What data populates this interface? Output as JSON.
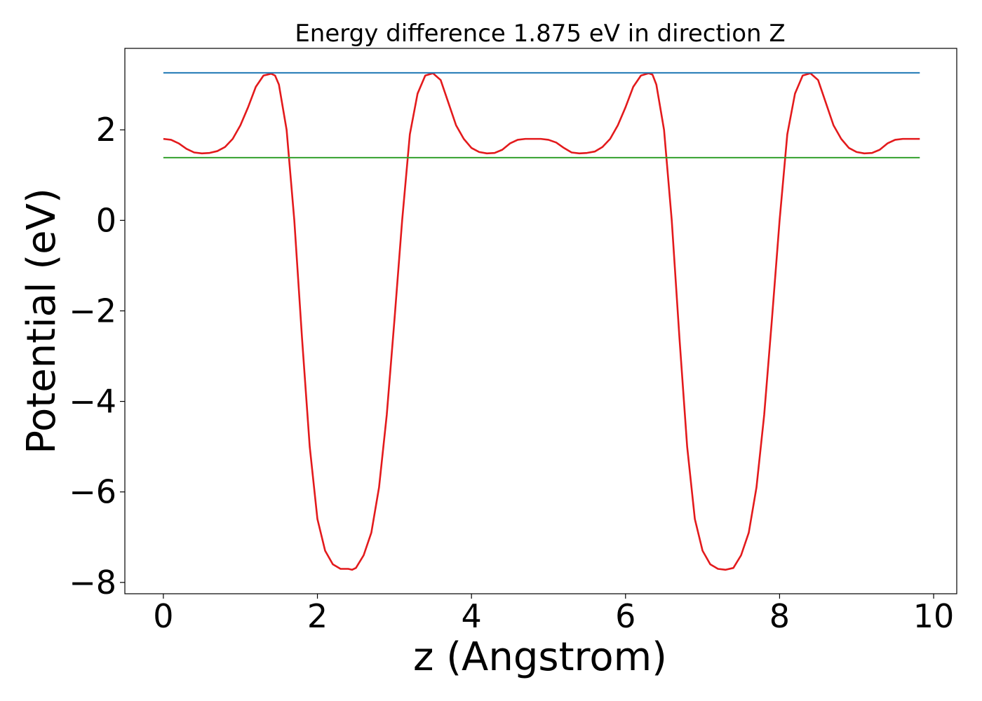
{
  "chart_data": {
    "type": "line",
    "title": "Energy difference 1.875 eV in direction Z",
    "xlabel": "z (Angstrom)",
    "ylabel": "Potential (eV)",
    "xlim": [
      -0.5,
      10.3
    ],
    "ylim": [
      -8.25,
      3.8
    ],
    "grid": false,
    "x_ticks": [
      0,
      2,
      4,
      6,
      8,
      10
    ],
    "x_tick_labels": [
      "0",
      "2",
      "4",
      "6",
      "8",
      "10"
    ],
    "y_ticks": [
      -8,
      -6,
      -4,
      -2,
      0,
      2
    ],
    "y_tick_labels": [
      "−8",
      "−6",
      "−4",
      "−2",
      "0",
      "2"
    ],
    "series": [
      {
        "color": "#e31a1c",
        "x": [
          0.0,
          0.1,
          0.2,
          0.3,
          0.4,
          0.5,
          0.6,
          0.7,
          0.8,
          0.9,
          1.0,
          1.1,
          1.2,
          1.3,
          1.4,
          1.45,
          1.5,
          1.6,
          1.7,
          1.8,
          1.9,
          2.0,
          2.1,
          2.2,
          2.3,
          2.4,
          2.45,
          2.5,
          2.6,
          2.7,
          2.8,
          2.9,
          3.0,
          3.1,
          3.2,
          3.3,
          3.4,
          3.5,
          3.6,
          3.7,
          3.8,
          3.9,
          4.0,
          4.1,
          4.2,
          4.3,
          4.4,
          4.5,
          4.6,
          4.7,
          4.8,
          4.9,
          5.0,
          5.1,
          5.2,
          5.3,
          5.4,
          5.5,
          5.6,
          5.7,
          5.8,
          5.9,
          6.0,
          6.1,
          6.2,
          6.3,
          6.35,
          6.4,
          6.5,
          6.6,
          6.7,
          6.8,
          6.9,
          7.0,
          7.1,
          7.2,
          7.3,
          7.4,
          7.5,
          7.6,
          7.7,
          7.8,
          7.9,
          8.0,
          8.1,
          8.2,
          8.3,
          8.4,
          8.5,
          8.6,
          8.7,
          8.8,
          8.9,
          9.0,
          9.1,
          9.2,
          9.3,
          9.4,
          9.5,
          9.6,
          9.7,
          9.82
        ],
        "y": [
          1.8,
          1.78,
          1.7,
          1.58,
          1.5,
          1.48,
          1.49,
          1.53,
          1.62,
          1.8,
          2.1,
          2.5,
          2.95,
          3.2,
          3.24,
          3.2,
          3.0,
          2.0,
          0.0,
          -2.6,
          -5.0,
          -6.6,
          -7.3,
          -7.6,
          -7.7,
          -7.7,
          -7.72,
          -7.68,
          -7.4,
          -6.9,
          -5.9,
          -4.3,
          -2.2,
          0.0,
          1.9,
          2.8,
          3.2,
          3.25,
          3.1,
          2.6,
          2.1,
          1.8,
          1.6,
          1.51,
          1.48,
          1.49,
          1.56,
          1.7,
          1.78,
          1.8,
          1.8,
          1.8,
          1.78,
          1.72,
          1.6,
          1.5,
          1.48,
          1.49,
          1.52,
          1.62,
          1.8,
          2.1,
          2.5,
          2.95,
          3.2,
          3.25,
          3.22,
          3.0,
          2.0,
          0.0,
          -2.6,
          -5.0,
          -6.6,
          -7.3,
          -7.6,
          -7.7,
          -7.72,
          -7.68,
          -7.4,
          -6.9,
          -5.9,
          -4.3,
          -2.2,
          0.0,
          1.9,
          2.8,
          3.2,
          3.25,
          3.1,
          2.6,
          2.1,
          1.8,
          1.6,
          1.51,
          1.48,
          1.49,
          1.56,
          1.7,
          1.78,
          1.8,
          1.8,
          1.8
        ]
      },
      {
        "color": "#1f78b4",
        "x": [
          0.0,
          9.82
        ],
        "y": [
          3.26,
          3.26
        ]
      },
      {
        "color": "#33a02c",
        "x": [
          0.0,
          9.82
        ],
        "y": [
          1.385,
          1.385
        ]
      }
    ]
  }
}
